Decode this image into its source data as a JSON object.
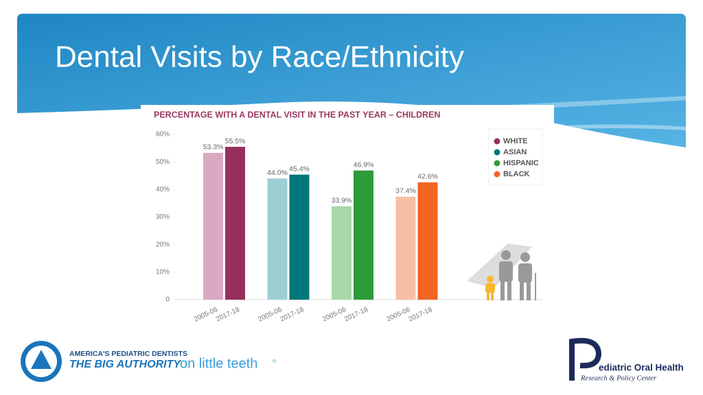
{
  "slide_title": "Dental Visits by Race/Ethnicity",
  "chart_data": {
    "type": "bar",
    "title": "PERCENTAGE WITH A DENTAL VISIT IN THE PAST YEAR – CHILDREN",
    "categories": [
      "2005-06",
      "2017-18"
    ],
    "series": [
      {
        "name": "WHITE",
        "color": "#96305f",
        "colors": [
          "#d9a9c2",
          "#96305f"
        ],
        "values": [
          53.3,
          55.5
        ],
        "value_labels": [
          "53.3%",
          "55.5%"
        ]
      },
      {
        "name": "ASIAN",
        "color": "#00777a",
        "colors": [
          "#9ccfd4",
          "#00777a"
        ],
        "values": [
          44.0,
          45.4
        ],
        "value_labels": [
          "44.0%",
          "45.4%"
        ]
      },
      {
        "name": "HISPANIC",
        "color": "#2e9b3a",
        "colors": [
          "#a9d8a9",
          "#2e9b3a"
        ],
        "values": [
          33.9,
          46.9
        ],
        "value_labels": [
          "33.9%",
          "46.9%"
        ]
      },
      {
        "name": "BLACK",
        "color": "#f26522",
        "colors": [
          "#f7bfa6",
          "#f26522"
        ],
        "values": [
          37.4,
          42.6
        ],
        "value_labels": [
          "37.4%",
          "42.6%"
        ]
      }
    ],
    "ylim": [
      0,
      60
    ],
    "yticks": [
      0,
      {
        "value": 10,
        "label": "10%"
      },
      {
        "value": 20,
        "label": "20%"
      },
      {
        "value": 30,
        "label": "30%"
      },
      {
        "value": 40,
        "label": "40%"
      },
      {
        "value": 50,
        "label": "50%"
      },
      {
        "value": 60,
        "label": "60%"
      }
    ],
    "legend": "upper right"
  },
  "footer": {
    "left_tagline": "AMERICA'S PEDIATRIC DENTISTS",
    "left_slogan_bold": "THE BIG AUTHORITY",
    "left_slogan_light": "on little teeth",
    "left_mark": "®",
    "right_name": "ediatric Oral Health",
    "right_sub": "Research & Policy Center"
  }
}
